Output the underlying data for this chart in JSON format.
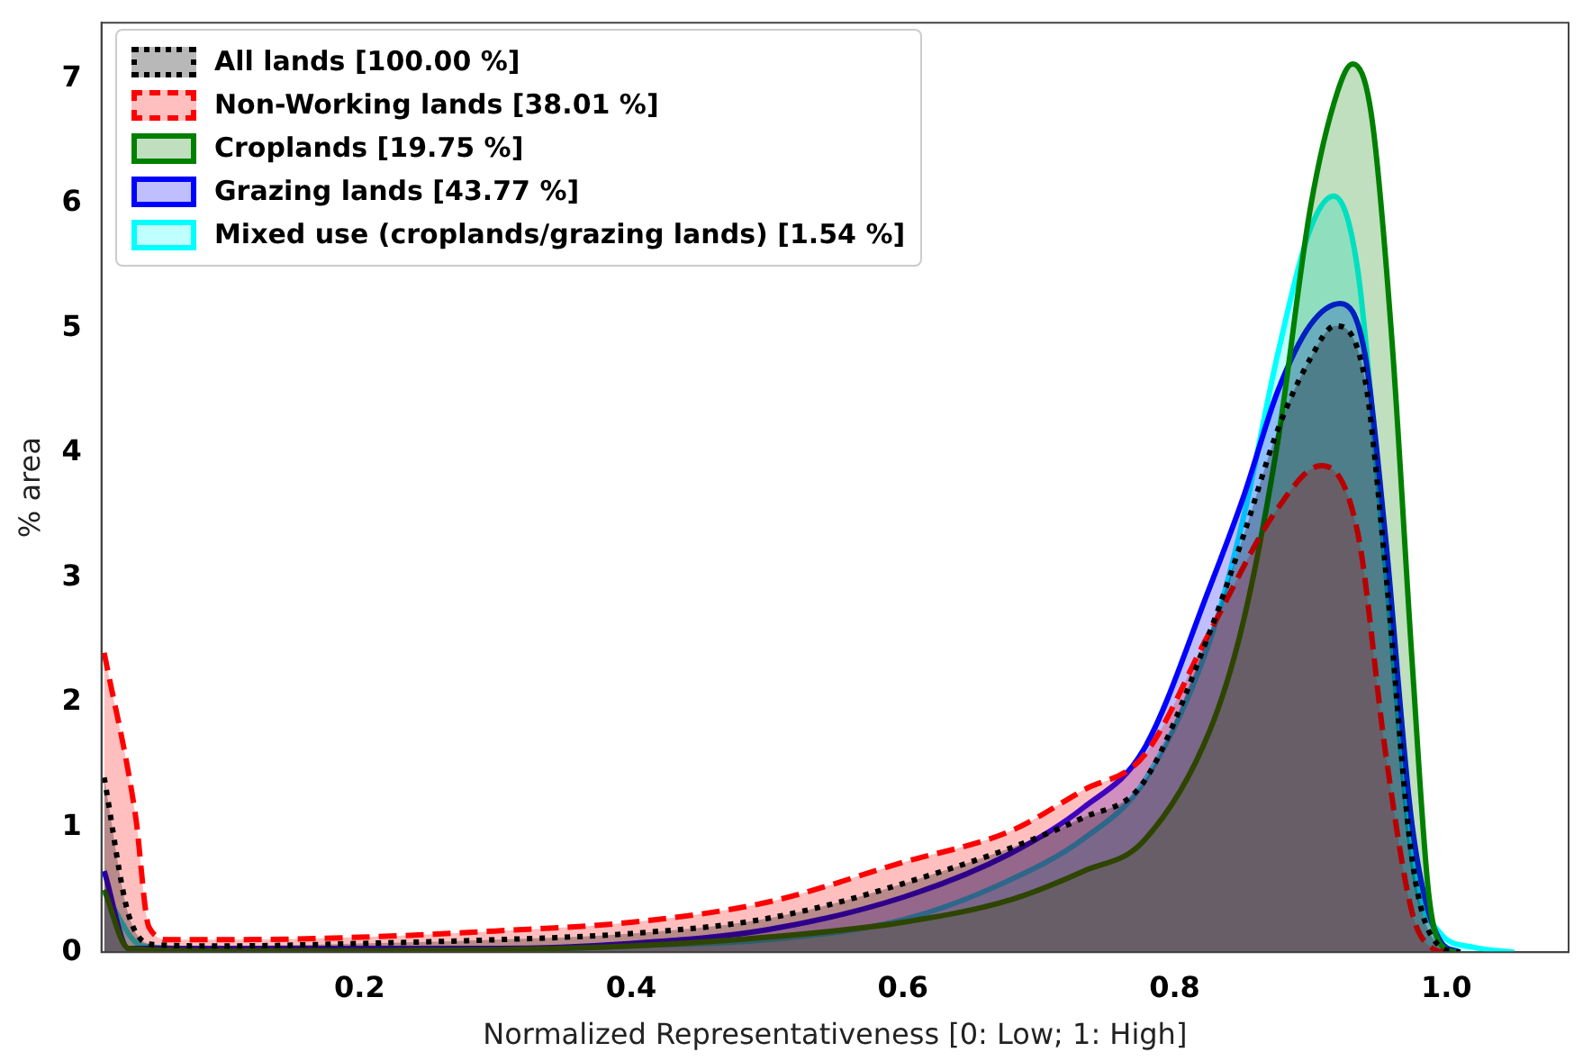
{
  "chart_data": {
    "type": "area",
    "xlabel": "Normalized Representativeness [0: Low; 1: High]",
    "ylabel": "% area",
    "xlim": [
      0.01,
      1.09
    ],
    "ylim": [
      0,
      7.45
    ],
    "xticks": [
      {
        "value": 0.2,
        "label": "0.2"
      },
      {
        "value": 0.4,
        "label": "0.4"
      },
      {
        "value": 0.6,
        "label": "0.6"
      },
      {
        "value": 0.8,
        "label": "0.8"
      },
      {
        "value": 1,
        "label": "1.0"
      }
    ],
    "yticks": [
      0,
      1,
      2,
      3,
      4,
      5,
      6,
      7
    ],
    "grid": false,
    "legend": "top left",
    "marker": "none",
    "series": [
      {
        "name": "All lands [100.00 %]",
        "color": "#000000",
        "line_style": "dotted",
        "x": [
          0.012,
          0.03,
          0.05,
          0.1,
          0.2,
          0.3,
          0.4,
          0.5,
          0.6,
          0.733,
          0.777,
          0.826,
          0.851,
          0.876,
          0.9,
          0.918,
          0.94,
          0.955,
          0.975,
          0.995,
          1.01
        ],
        "values": [
          1.4,
          0.3,
          0.06,
          0.05,
          0.07,
          0.1,
          0.15,
          0.27,
          0.55,
          1.08,
          1.36,
          2.57,
          3.35,
          4.19,
          4.76,
          5.02,
          4.6,
          3.1,
          0.73,
          0.05,
          0
        ]
      },
      {
        "name": "Non-Working lands [38.01 %]",
        "color": "#ff0000",
        "line_style": "dashed",
        "x": [
          0.012,
          0.035,
          0.045,
          0.06,
          0.1,
          0.2,
          0.3,
          0.4,
          0.5,
          0.6,
          0.679,
          0.733,
          0.777,
          0.826,
          0.876,
          0.908,
          0.935,
          0.955,
          0.975,
          0.99,
          1.0
        ],
        "values": [
          2.4,
          1.1,
          0.2,
          0.1,
          0.1,
          0.12,
          0.17,
          0.24,
          0.4,
          0.72,
          0.97,
          1.3,
          1.57,
          2.57,
          3.56,
          3.9,
          3.35,
          1.62,
          0.31,
          0.03,
          0
        ]
      },
      {
        "name": "Croplands [19.75 %]",
        "color": "#008000",
        "line_style": "solid",
        "x": [
          0.012,
          0.03,
          0.1,
          0.2,
          0.3,
          0.4,
          0.5,
          0.6,
          0.679,
          0.733,
          0.777,
          0.826,
          0.851,
          0.876,
          0.9,
          0.92,
          0.931,
          0.945,
          0.96,
          0.975,
          0.987,
          0.997,
          1.01
        ],
        "values": [
          0.5,
          0.03,
          0.01,
          0.01,
          0.02,
          0.05,
          0.12,
          0.24,
          0.42,
          0.65,
          0.89,
          1.78,
          2.67,
          4.1,
          5.97,
          6.9,
          7.12,
          6.7,
          4.9,
          2.3,
          0.47,
          0.05,
          0
        ]
      },
      {
        "name": "Grazing lands [43.77 %]",
        "color": "#0000ff",
        "line_style": "solid",
        "x": [
          0.012,
          0.03,
          0.1,
          0.2,
          0.3,
          0.4,
          0.5,
          0.6,
          0.679,
          0.733,
          0.777,
          0.826,
          0.851,
          0.876,
          0.9,
          0.922,
          0.94,
          0.955,
          0.975,
          0.995,
          1.01
        ],
        "values": [
          0.65,
          0.03,
          0.03,
          0.03,
          0.03,
          0.07,
          0.18,
          0.44,
          0.79,
          1.16,
          1.62,
          2.93,
          3.66,
          4.5,
          5.03,
          5.2,
          4.8,
          3.35,
          1.0,
          0.1,
          0
        ]
      },
      {
        "name": "Mixed use (croplands/grazing lands) [1.54 %]",
        "color": "#00ffff",
        "line_style": "solid",
        "x": [
          0.012,
          0.04,
          0.1,
          0.2,
          0.3,
          0.4,
          0.5,
          0.6,
          0.679,
          0.733,
          0.777,
          0.826,
          0.851,
          0.876,
          0.9,
          0.917,
          0.935,
          0.955,
          0.975,
          0.995,
          1.02,
          1.05
        ],
        "values": [
          0.48,
          0.05,
          0.02,
          0.02,
          0.02,
          0.05,
          0.1,
          0.26,
          0.58,
          0.91,
          1.36,
          2.5,
          3.5,
          4.8,
          5.8,
          6.06,
          5.45,
          3.1,
          0.73,
          0.16,
          0.04,
          0
        ]
      }
    ]
  }
}
